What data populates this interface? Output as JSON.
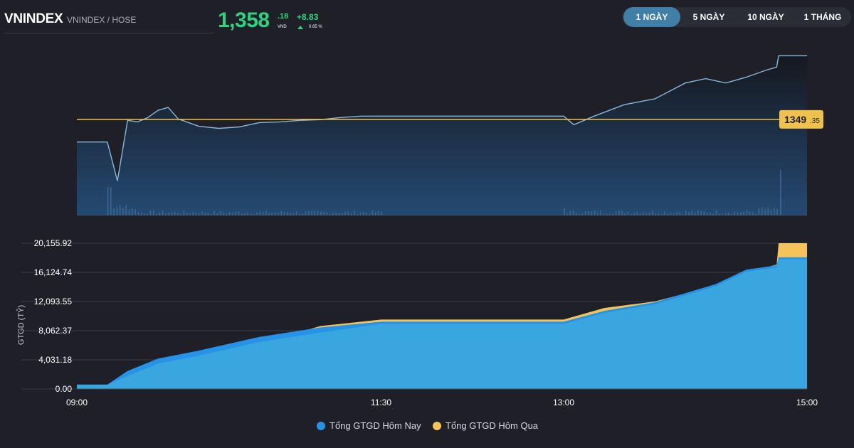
{
  "header": {
    "symbol": "VNINDEX",
    "exchange": "VNINDEX / HOSE",
    "price_int": "1,358",
    "price_dec": ".18",
    "price_unit": "VND",
    "change_abs": "+8.83",
    "change_pct": "0.65 %",
    "up_color": "#2bd47f"
  },
  "tabs": [
    {
      "label": "1 NGÀY",
      "active": true
    },
    {
      "label": "5 NGÀY",
      "active": false
    },
    {
      "label": "10 NGÀY",
      "active": false
    },
    {
      "label": "1 THÁNG",
      "active": false
    }
  ],
  "chart_data": [
    {
      "type": "line",
      "series": [
        {
          "values_desc": "intraday index"
        }
      ],
      "x": [
        "09:00",
        "09:15",
        "09:20",
        "09:25",
        "09:30",
        "09:35",
        "09:40",
        "09:45",
        "09:50",
        "10:00",
        "10:10",
        "10:20",
        "10:30",
        "10:40",
        "10:50",
        "11:00",
        "11:10",
        "11:20",
        "11:30",
        "11:45",
        "12:00",
        "12:30",
        "13:00",
        "13:05",
        "13:15",
        "13:30",
        "13:45",
        "14:00",
        "14:10",
        "14:20",
        "14:30",
        "14:40",
        "14:45",
        "14:46",
        "15:00"
      ],
      "y": [
        1346.2,
        1346.2,
        1340.8,
        1349.2,
        1349.0,
        1349.6,
        1350.6,
        1351.0,
        1349.4,
        1348.4,
        1348.1,
        1348.3,
        1348.9,
        1349.0,
        1349.2,
        1349.3,
        1349.6,
        1349.8,
        1349.8,
        1349.8,
        1349.8,
        1349.8,
        1349.8,
        1348.6,
        1349.8,
        1351.4,
        1352.2,
        1354.4,
        1355.0,
        1354.4,
        1355.2,
        1356.2,
        1356.6,
        1358.18,
        1358.18
      ],
      "reference_value": 1349.35,
      "reference_label_int": "1349",
      "reference_label_dec": ".35",
      "ylim": [
        1336.0,
        1360.0
      ],
      "reference_color": "#f0c24b",
      "line_color": "#8ab6dc"
    },
    {
      "type": "area",
      "ylabel": "GTGD (TỶ)",
      "y_ticks": [
        "0.00",
        "4,031.18",
        "8,062.37",
        "12,093.55",
        "16,124.74",
        "20,155.92"
      ],
      "y_tick_values": [
        0,
        4031.18,
        8062.37,
        12093.55,
        16124.74,
        20155.92
      ],
      "ylim": [
        0,
        20155.92
      ],
      "x_ticks": [
        "09:00",
        "11:30",
        "13:00",
        "15:00"
      ],
      "series": [
        {
          "name": "Tổng GTGD Hôm Nay",
          "color": "#2493e8",
          "x": [
            "09:00",
            "09:15",
            "09:25",
            "09:40",
            "10:00",
            "10:30",
            "11:00",
            "11:30",
            "13:00",
            "13:20",
            "13:45",
            "14:15",
            "14:30",
            "14:45",
            "14:46",
            "15:00"
          ],
          "y": [
            600,
            600,
            2500,
            4200,
            5300,
            7200,
            8500,
            9300,
            9300,
            10800,
            12000,
            14500,
            16500,
            17100,
            18200,
            18200
          ]
        },
        {
          "name": "Tổng GTGD Hôm Qua",
          "color": "#f4c35a",
          "x": [
            "09:00",
            "09:15",
            "09:25",
            "09:40",
            "10:00",
            "10:30",
            "11:00",
            "11:30",
            "13:00",
            "13:20",
            "13:45",
            "14:15",
            "14:30",
            "14:45",
            "14:46",
            "15:00"
          ],
          "y": [
            100,
            100,
            1300,
            2600,
            3900,
            6200,
            8700,
            9600,
            9600,
            11200,
            12100,
            14300,
            16100,
            17200,
            20155.92,
            20155.92
          ]
        }
      ],
      "bar_color": "#2d7dc0"
    }
  ],
  "legend": [
    {
      "label": "Tổng GTGD Hôm Nay",
      "color": "#2493e8"
    },
    {
      "label": "Tổng GTGD Hôm Qua",
      "color": "#f4c35a"
    }
  ]
}
